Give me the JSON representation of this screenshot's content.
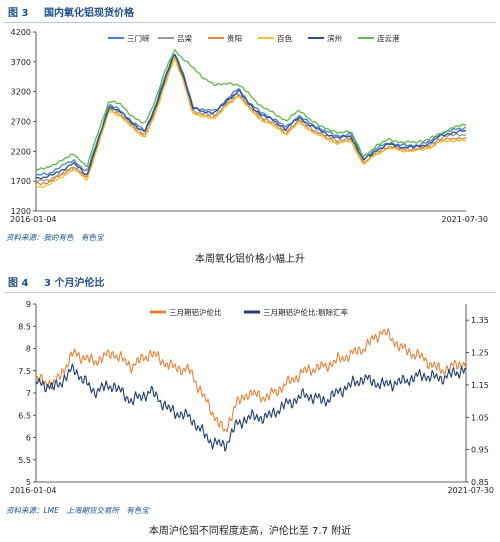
{
  "figures": [
    {
      "number": "图 3",
      "title": "国内氧化铝现货价格",
      "source": "资料来源：我的有色　有色宝",
      "caption": "本周氧化铝价格小幅上升"
    },
    {
      "number": "图 4",
      "title": "3 个月沪伦比",
      "source": "资料来源：LME　上海期货交易所　有色宝",
      "caption": "本周沪伦铝不同程度走高，沪伦比至 7.7 附近"
    }
  ],
  "chart_data": [
    {
      "type": "line",
      "title": "国内氧化铝现货价格",
      "x_range": [
        "2016-01-04",
        "2021-07-30"
      ],
      "x_tick_labels": [
        "2016-01-04",
        "2021-07-30"
      ],
      "ylim": [
        1200,
        4200
      ],
      "y_ticks": [
        1200,
        1700,
        2200,
        2700,
        3200,
        3700,
        4200
      ],
      "grid": false,
      "legend_position": "top",
      "series": [
        {
          "name": "三门峡",
          "color": "#4a7fd0",
          "x": [
            "2016-01-04",
            "2016-03-01",
            "2016-05-01",
            "2016-07-01",
            "2016-09-01",
            "2016-11-01",
            "2016-12-15",
            "2017-02-01",
            "2017-04-01",
            "2017-06-01",
            "2017-07-15",
            "2017-09-01",
            "2017-10-20",
            "2017-12-01",
            "2018-01-15",
            "2018-03-01",
            "2018-05-01",
            "2018-07-01",
            "2018-08-20",
            "2018-10-01",
            "2018-12-01",
            "2019-02-01",
            "2019-04-01",
            "2019-06-01",
            "2019-08-01",
            "2019-10-01",
            "2019-12-01",
            "2020-02-01",
            "2020-04-01",
            "2020-06-01",
            "2020-08-01",
            "2020-10-01",
            "2020-12-01",
            "2021-02-01",
            "2021-04-01",
            "2021-06-01",
            "2021-07-30"
          ],
          "values": [
            1800,
            1820,
            1950,
            2050,
            1850,
            2500,
            2980,
            2900,
            2700,
            2550,
            2900,
            3400,
            3870,
            3500,
            2950,
            2900,
            2880,
            3100,
            3250,
            3050,
            2850,
            2750,
            2600,
            2800,
            2650,
            2550,
            2450,
            2500,
            2080,
            2250,
            2350,
            2300,
            2300,
            2350,
            2500,
            2560,
            2600
          ]
        },
        {
          "name": "吕梁",
          "color": "#9a9a9a",
          "x": [
            "2016-01-04",
            "2016-03-01",
            "2016-05-01",
            "2016-07-01",
            "2016-09-01",
            "2016-11-01",
            "2016-12-15",
            "2017-02-01",
            "2017-04-01",
            "2017-06-01",
            "2017-07-15",
            "2017-09-01",
            "2017-10-20",
            "2017-12-01",
            "2018-01-15",
            "2018-03-01",
            "2018-05-01",
            "2018-07-01",
            "2018-08-20",
            "2018-10-01",
            "2018-12-01",
            "2019-02-01",
            "2019-04-01",
            "2019-06-01",
            "2019-08-01",
            "2019-10-01",
            "2019-12-01",
            "2020-02-01",
            "2020-04-01",
            "2020-06-01",
            "2020-08-01",
            "2020-10-01",
            "2020-12-01",
            "2021-02-01",
            "2021-04-01",
            "2021-06-01",
            "2021-07-30"
          ],
          "values": [
            1700,
            1720,
            1820,
            1950,
            1760,
            2420,
            2930,
            2860,
            2650,
            2480,
            2820,
            3330,
            3800,
            3430,
            2880,
            2830,
            2810,
            3040,
            3180,
            2990,
            2780,
            2680,
            2530,
            2730,
            2580,
            2470,
            2380,
            2420,
            2010,
            2180,
            2290,
            2240,
            2240,
            2290,
            2420,
            2480,
            2480
          ]
        },
        {
          "name": "贵阳",
          "color": "#e8833a",
          "x": [
            "2016-01-04",
            "2016-03-01",
            "2016-05-01",
            "2016-07-01",
            "2016-09-01",
            "2016-11-01",
            "2016-12-15",
            "2017-02-01",
            "2017-04-01",
            "2017-06-01",
            "2017-07-15",
            "2017-09-01",
            "2017-10-20",
            "2017-12-01",
            "2018-01-15",
            "2018-03-01",
            "2018-05-01",
            "2018-07-01",
            "2018-08-20",
            "2018-10-01",
            "2018-12-01",
            "2019-02-01",
            "2019-04-01",
            "2019-06-01",
            "2019-08-01",
            "2019-10-01",
            "2019-12-01",
            "2020-02-01",
            "2020-04-01",
            "2020-06-01",
            "2020-08-01",
            "2020-10-01",
            "2020-12-01",
            "2021-02-01",
            "2021-04-01",
            "2021-06-01",
            "2021-07-30"
          ],
          "values": [
            1650,
            1680,
            1800,
            1930,
            1740,
            2400,
            2900,
            2830,
            2620,
            2450,
            2780,
            3300,
            3780,
            3400,
            2850,
            2800,
            2780,
            3000,
            3150,
            2960,
            2750,
            2650,
            2500,
            2700,
            2550,
            2440,
            2350,
            2390,
            1990,
            2160,
            2270,
            2220,
            2220,
            2260,
            2380,
            2420,
            2420
          ]
        },
        {
          "name": "百色",
          "color": "#f2c12e",
          "x": [
            "2016-01-04",
            "2016-03-01",
            "2016-05-01",
            "2016-07-01",
            "2016-09-01",
            "2016-11-01",
            "2016-12-15",
            "2017-02-01",
            "2017-04-01",
            "2017-06-01",
            "2017-07-15",
            "2017-09-01",
            "2017-10-20",
            "2017-12-01",
            "2018-01-15",
            "2018-03-01",
            "2018-05-01",
            "2018-07-01",
            "2018-08-20",
            "2018-10-01",
            "2018-12-01",
            "2019-02-01",
            "2019-04-01",
            "2019-06-01",
            "2019-08-01",
            "2019-10-01",
            "2019-12-01",
            "2020-02-01",
            "2020-04-01",
            "2020-06-01",
            "2020-08-01",
            "2020-10-01",
            "2020-12-01",
            "2021-02-01",
            "2021-04-01",
            "2021-06-01",
            "2021-07-30"
          ],
          "values": [
            1600,
            1630,
            1760,
            1900,
            1720,
            2380,
            2880,
            2800,
            2600,
            2430,
            2760,
            3280,
            3750,
            3380,
            2830,
            2780,
            2760,
            2980,
            3130,
            2940,
            2730,
            2630,
            2480,
            2680,
            2530,
            2420,
            2330,
            2370,
            1980,
            2150,
            2260,
            2210,
            2210,
            2250,
            2360,
            2380,
            2380
          ]
        },
        {
          "name": "滨州",
          "color": "#2d4f86",
          "x": [
            "2016-01-04",
            "2016-03-01",
            "2016-05-01",
            "2016-07-01",
            "2016-09-01",
            "2016-11-01",
            "2016-12-15",
            "2017-02-01",
            "2017-04-01",
            "2017-06-01",
            "2017-07-15",
            "2017-09-01",
            "2017-10-20",
            "2017-12-01",
            "2018-01-15",
            "2018-03-01",
            "2018-05-01",
            "2018-07-01",
            "2018-08-20",
            "2018-10-01",
            "2018-12-01",
            "2019-02-01",
            "2019-04-01",
            "2019-06-01",
            "2019-08-01",
            "2019-10-01",
            "2019-12-01",
            "2020-02-01",
            "2020-04-01",
            "2020-06-01",
            "2020-08-01",
            "2020-10-01",
            "2020-12-01",
            "2021-02-01",
            "2021-04-01",
            "2021-06-01",
            "2021-07-30"
          ],
          "values": [
            1750,
            1770,
            1880,
            2000,
            1800,
            2460,
            2950,
            2880,
            2680,
            2520,
            2860,
            3370,
            3840,
            3470,
            2920,
            2870,
            2850,
            3070,
            3220,
            3020,
            2820,
            2720,
            2570,
            2770,
            2620,
            2510,
            2420,
            2460,
            2050,
            2220,
            2320,
            2270,
            2270,
            2320,
            2460,
            2520,
            2540
          ]
        },
        {
          "name": "连云港",
          "color": "#5fb84a",
          "x": [
            "2016-01-04",
            "2016-03-01",
            "2016-05-01",
            "2016-07-01",
            "2016-09-01",
            "2016-11-01",
            "2016-12-15",
            "2017-02-01",
            "2017-04-01",
            "2017-06-01",
            "2017-07-15",
            "2017-09-01",
            "2017-10-20",
            "2017-12-01",
            "2018-01-15",
            "2018-03-01",
            "2018-05-01",
            "2018-07-01",
            "2018-08-20",
            "2018-10-01",
            "2018-12-01",
            "2019-02-01",
            "2019-04-01",
            "2019-06-01",
            "2019-08-01",
            "2019-10-01",
            "2019-12-01",
            "2020-02-01",
            "2020-04-01",
            "2020-06-01",
            "2020-08-01",
            "2020-10-01",
            "2020-12-01",
            "2021-02-01",
            "2021-04-01",
            "2021-06-01",
            "2021-07-30"
          ],
          "values": [
            1900,
            1920,
            2050,
            2150,
            1950,
            2600,
            3050,
            3000,
            2800,
            2650,
            3000,
            3500,
            3900,
            3750,
            3600,
            3450,
            3300,
            3350,
            3300,
            3200,
            2950,
            2850,
            2700,
            2900,
            2700,
            2600,
            2500,
            2550,
            2100,
            2300,
            2400,
            2350,
            2350,
            2400,
            2500,
            2600,
            2650
          ]
        }
      ]
    },
    {
      "type": "line",
      "title": "3 个月沪伦比",
      "x_range": [
        "2016-01-04",
        "2021-07-30"
      ],
      "x_tick_labels": [
        "2016-01-04",
        "2021-07-30"
      ],
      "ylim": [
        5,
        9
      ],
      "y_ticks": [
        5,
        5.5,
        6,
        6.5,
        7,
        7.5,
        8,
        8.5,
        9
      ],
      "y2lim": [
        0.85,
        1.4
      ],
      "y2_ticks": [
        0.85,
        0.95,
        1.05,
        1.15,
        1.25,
        1.35
      ],
      "grid": false,
      "legend_position": "top",
      "series": [
        {
          "name": "三月期铝沪伦比",
          "color": "#e8833a",
          "axis": "left",
          "x": [
            "2016-01-04",
            "2016-04-01",
            "2016-07-01",
            "2016-10-01",
            "2017-01-01",
            "2017-04-01",
            "2017-07-01",
            "2017-10-01",
            "2018-01-01",
            "2018-04-01",
            "2018-06-15",
            "2018-08-01",
            "2018-10-01",
            "2019-01-01",
            "2019-04-01",
            "2019-07-01",
            "2019-10-01",
            "2020-01-01",
            "2020-04-01",
            "2020-07-01",
            "2020-10-01",
            "2021-01-01",
            "2021-04-01",
            "2021-07-30"
          ],
          "values": [
            7.3,
            7.2,
            7.9,
            7.7,
            7.9,
            7.6,
            7.9,
            7.6,
            7.5,
            6.7,
            6.1,
            6.7,
            7.0,
            6.9,
            7.2,
            7.5,
            7.6,
            7.8,
            8.0,
            8.4,
            8.0,
            7.8,
            7.5,
            7.7
          ]
        },
        {
          "name": "三月期铝沪伦比:剔除汇率",
          "color": "#1f3e6e",
          "axis": "right",
          "x": [
            "2016-01-04",
            "2016-04-01",
            "2016-07-01",
            "2016-10-01",
            "2017-01-01",
            "2017-04-01",
            "2017-07-01",
            "2017-10-01",
            "2018-01-01",
            "2018-04-01",
            "2018-06-15",
            "2018-08-01",
            "2018-10-01",
            "2019-01-01",
            "2019-04-01",
            "2019-07-01",
            "2019-10-01",
            "2020-01-01",
            "2020-04-01",
            "2020-07-01",
            "2020-10-01",
            "2021-01-01",
            "2021-04-01",
            "2021-07-30"
          ],
          "values": [
            1.16,
            1.14,
            1.2,
            1.13,
            1.15,
            1.1,
            1.13,
            1.07,
            1.05,
            0.98,
            0.96,
            1.02,
            1.05,
            1.05,
            1.09,
            1.12,
            1.1,
            1.14,
            1.17,
            1.15,
            1.16,
            1.18,
            1.17,
            1.2
          ]
        }
      ]
    }
  ]
}
